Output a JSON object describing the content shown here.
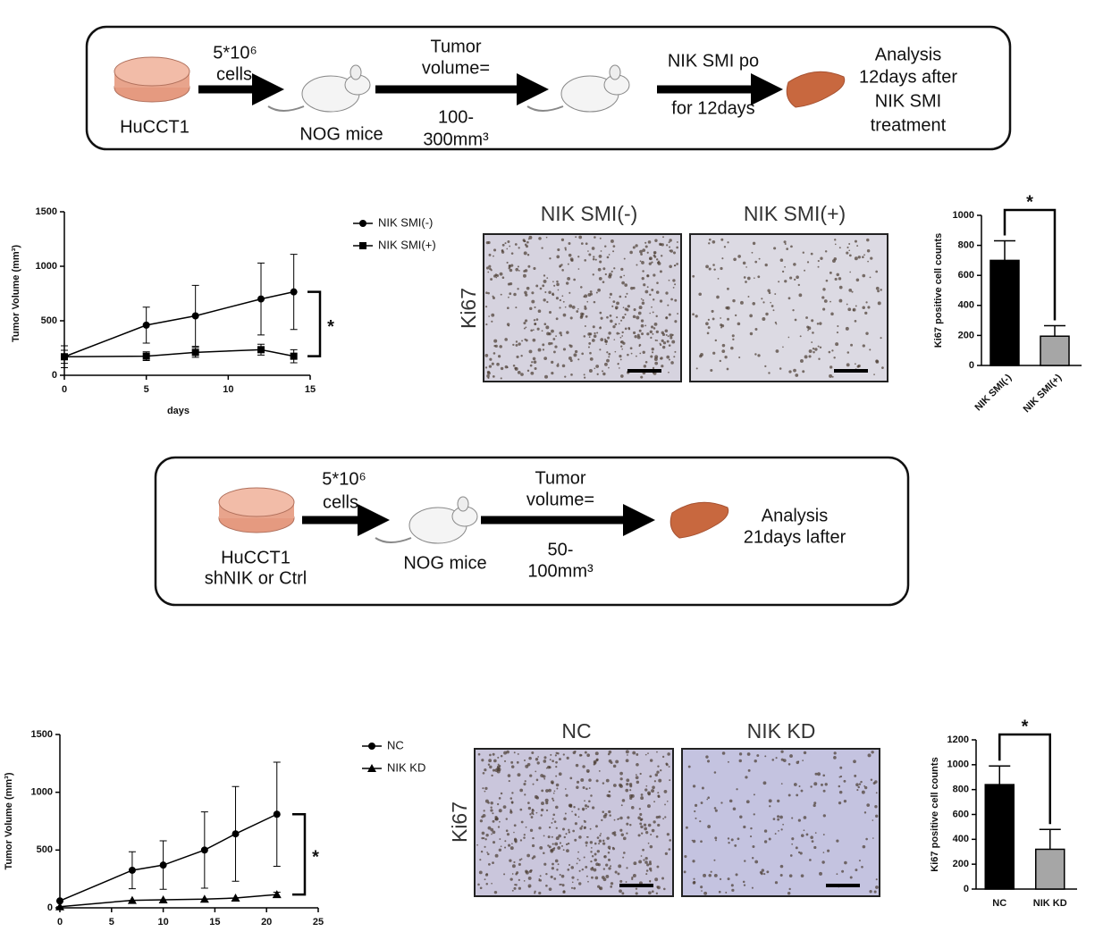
{
  "workflows": [
    {
      "cells": [
        "5*10⁶",
        "cells"
      ],
      "cell_line": [
        "HuCCT1"
      ],
      "mice": "NOG mice",
      "tumor": [
        "Tumor",
        "volume="
      ],
      "volume": [
        "100-",
        "300mm³"
      ],
      "treatment": "NIK SMI po",
      "duration": "for 12days",
      "analysis": [
        "Analysis",
        "12days after",
        "NIK SMI",
        "treatment"
      ]
    },
    {
      "cells": [
        "5*10⁶",
        "cells"
      ],
      "cell_line": [
        "HuCCT1",
        "shNIK or Ctrl"
      ],
      "mice": "NOG mice",
      "tumor": [
        "Tumor",
        "volume="
      ],
      "volume": [
        "50-",
        "100mm³"
      ],
      "analysis": [
        "Analysis",
        "21days lafter"
      ]
    }
  ],
  "micrographs": [
    {
      "stain": "Ki67",
      "panels": [
        "NIK SMI(-)",
        "NIK SMI(+)"
      ]
    },
    {
      "stain": "Ki67",
      "panels": [
        "NC",
        "NIK KD"
      ]
    }
  ],
  "chart_data": [
    {
      "type": "line",
      "ylabel": "Tumor Volume (mm³)",
      "xlabel": "days",
      "annotation": "*",
      "x": [
        0,
        5,
        8,
        12,
        14
      ],
      "xlim": [
        0,
        15
      ],
      "xticks": [
        0,
        5,
        10,
        15
      ],
      "ylim": [
        0,
        1500
      ],
      "yticks": [
        0,
        500,
        1000,
        1500
      ],
      "series": [
        {
          "name": "NIK SMI(-)",
          "color": "#000000",
          "marker": "circle",
          "values": [
            170,
            460,
            545,
            700,
            765
          ],
          "errors": [
            100,
            165,
            280,
            330,
            345
          ]
        },
        {
          "name": "NIK SMI(+)",
          "color": "#000000",
          "marker": "square",
          "values": [
            170,
            175,
            210,
            235,
            175
          ],
          "errors": [
            60,
            40,
            45,
            50,
            60
          ]
        }
      ]
    },
    {
      "type": "bar",
      "ylabel": "Ki67 positive cell counts",
      "annotation": "*",
      "categories": [
        "NIK SMI(-)",
        "NIK SMI(+)"
      ],
      "values": [
        700,
        195
      ],
      "errors": [
        130,
        70
      ],
      "colors": [
        "#000000",
        "#a6a6a6"
      ],
      "ylim": [
        0,
        1000
      ],
      "yticks": [
        0,
        200,
        400,
        600,
        800,
        1000
      ]
    },
    {
      "type": "line",
      "ylabel": "Tumor Volume (mm³)",
      "annotation": "*",
      "x": [
        0,
        7,
        10,
        14,
        17,
        21
      ],
      "xlim": [
        0,
        25
      ],
      "xticks": [
        0,
        5,
        10,
        15,
        20,
        25
      ],
      "ylim": [
        0,
        1500
      ],
      "yticks": [
        0,
        500,
        1000,
        1500
      ],
      "series": [
        {
          "name": "NC",
          "color": "#000000",
          "marker": "circle",
          "values": [
            60,
            325,
            370,
            500,
            640,
            810
          ],
          "errors": [
            0,
            160,
            210,
            330,
            410,
            450
          ]
        },
        {
          "name": "NIK KD",
          "color": "#000000",
          "marker": "triangle",
          "values": [
            10,
            65,
            70,
            75,
            85,
            115
          ],
          "errors": [
            0,
            0,
            0,
            0,
            0,
            20
          ]
        }
      ]
    },
    {
      "type": "bar",
      "ylabel": "Ki67 positive cell counts",
      "annotation": "*",
      "categories": [
        "NC",
        "NIK KD"
      ],
      "values": [
        840,
        320
      ],
      "errors": [
        150,
        160
      ],
      "colors": [
        "#000000",
        "#a6a6a6"
      ],
      "ylim": [
        0,
        1200
      ],
      "yticks": [
        0,
        200,
        400,
        600,
        800,
        1000,
        1200
      ]
    }
  ]
}
